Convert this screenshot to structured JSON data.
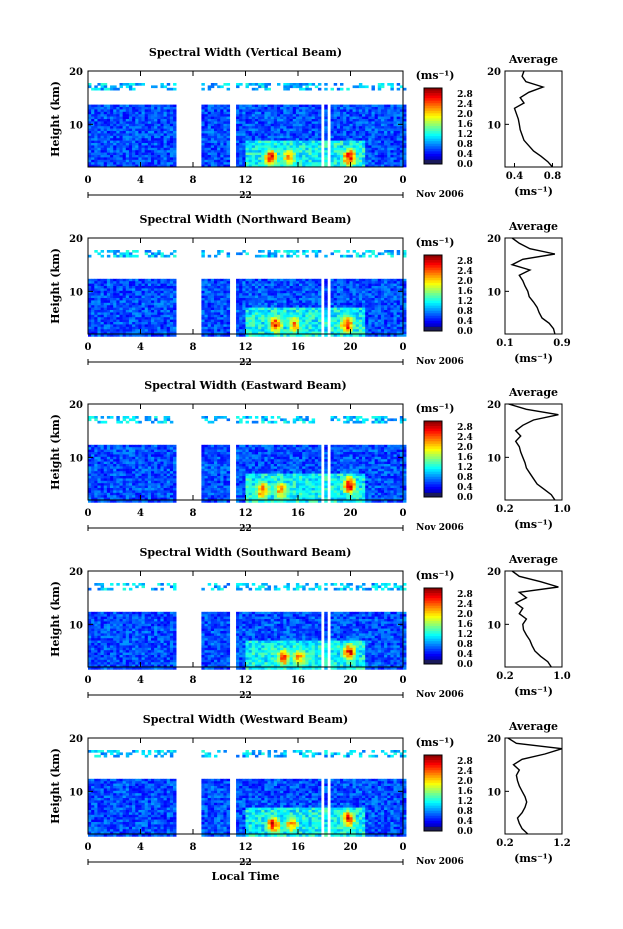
{
  "figure": {
    "xlabel": "Local Time",
    "date_label": "Nov 2006",
    "day_label": "22",
    "colorbar_unit": "(ms⁻¹)",
    "colorbar_ticks": [
      "2.8",
      "2.4",
      "2.0",
      "1.6",
      "1.2",
      "0.8",
      "0.4",
      "0.0"
    ],
    "avg_xlabel": "(ms⁻¹)"
  },
  "chart_data": [
    {
      "type": "heatmap",
      "title": "Spectral Width (Vertical Beam)",
      "ylabel": "Height (km)",
      "x_ticks": [
        "0",
        "4",
        "8",
        "12",
        "16",
        "20",
        "0"
      ],
      "y_ticks": [
        "20",
        "10"
      ],
      "xlim": [
        0,
        24
      ],
      "ylim": [
        2,
        20
      ],
      "colorbar_range": [
        0.0,
        3.0
      ],
      "data_gaps_hours": [
        [
          6.5,
          8.5
        ],
        [
          10.6,
          11.1
        ],
        [
          17.7,
          17.9
        ],
        [
          18.2,
          18.4
        ]
      ],
      "top_cutoff_km": 14.0,
      "hot_spots": [
        {
          "x": 13.8,
          "y": 4,
          "v": 2.6
        },
        {
          "x": 15.2,
          "y": 4,
          "v": 2.4
        },
        {
          "x": 19.8,
          "y": 4,
          "v": 2.8
        }
      ],
      "average_profile": {
        "title": "Average",
        "x_ticks": [
          "0.4",
          "0.8"
        ],
        "xlim": [
          0.3,
          0.9
        ],
        "y_ticks": [
          "20",
          "10"
        ],
        "height_km": [
          2,
          3,
          4,
          5,
          6,
          7,
          8,
          9,
          10,
          11,
          12,
          13,
          14,
          15,
          16,
          17,
          18,
          19,
          20
        ],
        "width_ms": [
          0.8,
          0.75,
          0.68,
          0.6,
          0.55,
          0.5,
          0.48,
          0.46,
          0.45,
          0.44,
          0.42,
          0.4,
          0.5,
          0.46,
          0.55,
          0.7,
          0.52,
          0.48,
          0.5
        ]
      }
    },
    {
      "type": "heatmap",
      "title": "Spectral Width (Northward Beam)",
      "ylabel": "Height (km)",
      "x_ticks": [
        "0",
        "4",
        "8",
        "12",
        "16",
        "20",
        "0"
      ],
      "y_ticks": [
        "20",
        "10"
      ],
      "xlim": [
        0,
        24
      ],
      "ylim": [
        2,
        20
      ],
      "colorbar_range": [
        0.0,
        3.0
      ],
      "data_gaps_hours": [
        [
          6.5,
          8.5
        ],
        [
          10.6,
          11.1
        ],
        [
          17.7,
          17.9
        ],
        [
          18.2,
          18.4
        ]
      ],
      "top_cutoff_km": 12.5,
      "hot_spots": [
        {
          "x": 14.2,
          "y": 4,
          "v": 2.6
        },
        {
          "x": 15.6,
          "y": 4,
          "v": 2.3
        },
        {
          "x": 19.6,
          "y": 4,
          "v": 2.7
        }
      ],
      "average_profile": {
        "title": "Average",
        "x_ticks": [
          "0.1",
          "0.9"
        ],
        "xlim": [
          0.1,
          0.9
        ],
        "y_ticks": [
          "20",
          "10"
        ],
        "height_km": [
          2,
          3,
          4,
          5,
          6,
          7,
          8,
          9,
          10,
          11,
          12,
          13,
          14,
          15,
          16,
          17,
          18,
          19,
          20
        ],
        "width_ms": [
          0.8,
          0.78,
          0.72,
          0.62,
          0.58,
          0.55,
          0.5,
          0.44,
          0.42,
          0.38,
          0.35,
          0.3,
          0.45,
          0.2,
          0.35,
          0.8,
          0.45,
          0.3,
          0.2
        ]
      }
    },
    {
      "type": "heatmap",
      "title": "Spectral Width (Eastward Beam)",
      "ylabel": "Height (km)",
      "x_ticks": [
        "0",
        "4",
        "8",
        "12",
        "16",
        "20",
        "0"
      ],
      "y_ticks": [
        "20",
        "10"
      ],
      "xlim": [
        0,
        24
      ],
      "ylim": [
        2,
        20
      ],
      "colorbar_range": [
        0.0,
        3.0
      ],
      "data_gaps_hours": [
        [
          6.5,
          8.5
        ],
        [
          10.6,
          11.1
        ],
        [
          17.7,
          17.9
        ],
        [
          18.2,
          18.4
        ]
      ],
      "top_cutoff_km": 12.5,
      "hot_spots": [
        {
          "x": 13.2,
          "y": 4,
          "v": 2.5
        },
        {
          "x": 14.6,
          "y": 4,
          "v": 2.3
        },
        {
          "x": 19.8,
          "y": 5,
          "v": 2.8
        }
      ],
      "average_profile": {
        "title": "Average",
        "x_ticks": [
          "0.2",
          "1.0"
        ],
        "xlim": [
          0.2,
          1.0
        ],
        "y_ticks": [
          "20",
          "10"
        ],
        "height_km": [
          2,
          3,
          4,
          5,
          6,
          7,
          8,
          9,
          10,
          11,
          12,
          13,
          14,
          15,
          16,
          17,
          18,
          19,
          20
        ],
        "width_ms": [
          0.9,
          0.85,
          0.75,
          0.65,
          0.6,
          0.55,
          0.5,
          0.48,
          0.45,
          0.42,
          0.4,
          0.35,
          0.42,
          0.35,
          0.45,
          0.6,
          0.95,
          0.5,
          0.25
        ]
      }
    },
    {
      "type": "heatmap",
      "title": "Spectral Width (Southward Beam)",
      "ylabel": "Height (km)",
      "x_ticks": [
        "0",
        "4",
        "8",
        "12",
        "16",
        "20",
        "0"
      ],
      "y_ticks": [
        "20",
        "10"
      ],
      "xlim": [
        0,
        24
      ],
      "ylim": [
        2,
        20
      ],
      "colorbar_range": [
        0.0,
        3.0
      ],
      "data_gaps_hours": [
        [
          6.5,
          8.5
        ],
        [
          10.6,
          11.1
        ],
        [
          17.7,
          17.9
        ],
        [
          18.2,
          18.4
        ]
      ],
      "top_cutoff_km": 12.5,
      "hot_spots": [
        {
          "x": 14.8,
          "y": 4,
          "v": 2.6
        },
        {
          "x": 16.0,
          "y": 4,
          "v": 2.3
        },
        {
          "x": 19.8,
          "y": 5,
          "v": 2.7
        }
      ],
      "average_profile": {
        "title": "Average",
        "x_ticks": [
          "0.2",
          "1.0"
        ],
        "xlim": [
          0.2,
          1.0
        ],
        "y_ticks": [
          "20",
          "10"
        ],
        "height_km": [
          2,
          3,
          4,
          5,
          6,
          7,
          8,
          9,
          10,
          11,
          12,
          13,
          14,
          15,
          16,
          17,
          18,
          19,
          20
        ],
        "width_ms": [
          0.85,
          0.8,
          0.7,
          0.62,
          0.58,
          0.55,
          0.5,
          0.46,
          0.45,
          0.5,
          0.4,
          0.45,
          0.35,
          0.5,
          0.4,
          0.95,
          0.7,
          0.4,
          0.3
        ]
      }
    },
    {
      "type": "heatmap",
      "title": "Spectral Width (Westward Beam)",
      "ylabel": "Height (km)",
      "x_ticks": [
        "0",
        "4",
        "8",
        "12",
        "16",
        "20",
        "0"
      ],
      "y_ticks": [
        "20",
        "10"
      ],
      "xlim": [
        0,
        24
      ],
      "ylim": [
        2,
        20
      ],
      "colorbar_range": [
        0.0,
        3.0
      ],
      "data_gaps_hours": [
        [
          6.5,
          8.5
        ],
        [
          10.6,
          11.1
        ],
        [
          17.7,
          17.9
        ],
        [
          18.2,
          18.4
        ]
      ],
      "top_cutoff_km": 12.5,
      "hot_spots": [
        {
          "x": 14.0,
          "y": 4,
          "v": 2.7
        },
        {
          "x": 15.4,
          "y": 4,
          "v": 2.3
        },
        {
          "x": 19.7,
          "y": 5,
          "v": 2.6
        }
      ],
      "average_profile": {
        "title": "Average",
        "x_ticks": [
          "0.2",
          "1.2"
        ],
        "xlim": [
          0.2,
          1.2
        ],
        "y_ticks": [
          "20",
          "10"
        ],
        "height_km": [
          2,
          3,
          4,
          5,
          6,
          7,
          8,
          9,
          10,
          11,
          12,
          13,
          14,
          15,
          16,
          17,
          18,
          19,
          20
        ],
        "width_ms": [
          0.6,
          0.5,
          0.45,
          0.42,
          0.5,
          0.55,
          0.58,
          0.55,
          0.5,
          0.45,
          0.42,
          0.4,
          0.45,
          0.35,
          0.5,
          0.9,
          1.2,
          0.4,
          0.25
        ]
      }
    }
  ]
}
